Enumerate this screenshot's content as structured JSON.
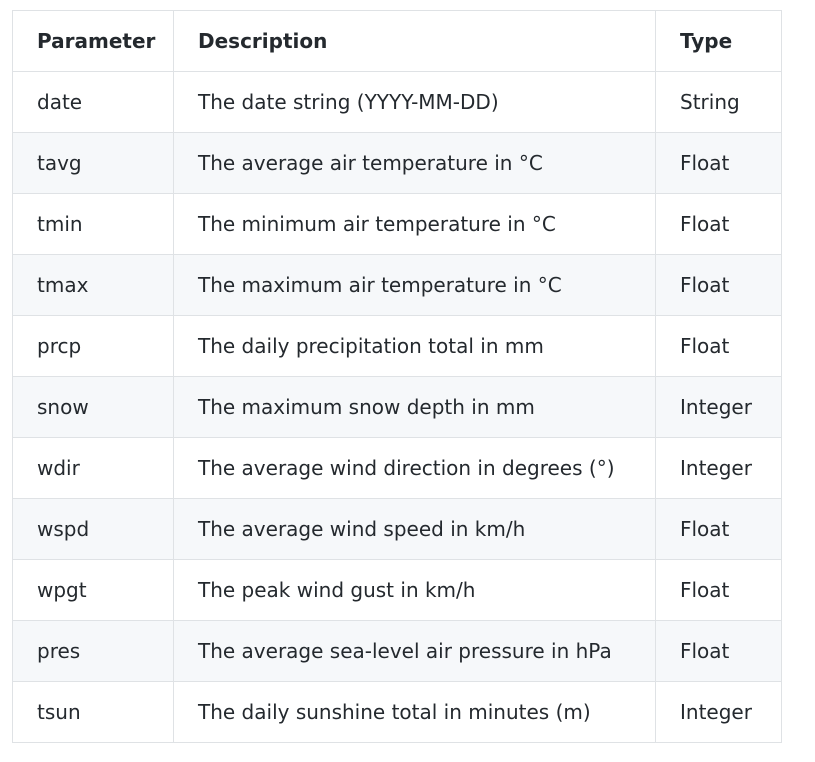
{
  "table": {
    "headers": {
      "parameter": "Parameter",
      "description": "Description",
      "type": "Type"
    },
    "rows": [
      {
        "parameter": "date",
        "description": "The date string (YYYY-MM-DD)",
        "type": "String"
      },
      {
        "parameter": "tavg",
        "description": "The average air temperature in °C",
        "type": "Float"
      },
      {
        "parameter": "tmin",
        "description": "The minimum air temperature in °C",
        "type": "Float"
      },
      {
        "parameter": "tmax",
        "description": "The maximum air temperature in °C",
        "type": "Float"
      },
      {
        "parameter": "prcp",
        "description": "The daily precipitation total in mm",
        "type": "Float"
      },
      {
        "parameter": "snow",
        "description": "The maximum snow depth in mm",
        "type": "Integer"
      },
      {
        "parameter": "wdir",
        "description": "The average wind direction in degrees (°)",
        "type": "Integer"
      },
      {
        "parameter": "wspd",
        "description": "The average wind speed in km/h",
        "type": "Float"
      },
      {
        "parameter": "wpgt",
        "description": "The peak wind gust in km/h",
        "type": "Float"
      },
      {
        "parameter": "pres",
        "description": "The average sea-level air pressure in hPa",
        "type": "Float"
      },
      {
        "parameter": "tsun",
        "description": "The daily sunshine total in minutes (m)",
        "type": "Integer"
      }
    ]
  },
  "colors": {
    "text": "#24292e",
    "border": "#dfe2e5",
    "stripe": "#f6f8fa",
    "background": "#ffffff"
  }
}
